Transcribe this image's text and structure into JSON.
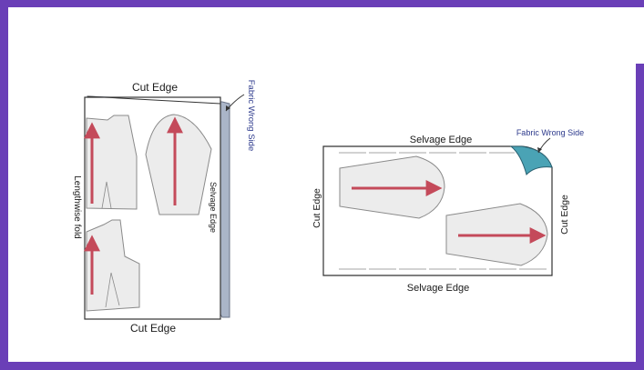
{
  "left_diagram": {
    "top_label": "Cut Edge",
    "bottom_label": "Cut Edge",
    "left_label": "Lengthwise fold",
    "right_label": "Selvage Edge",
    "fabric_side_label": "Fabric Wrong Side"
  },
  "right_diagram": {
    "top_label": "Selvage Edge",
    "bottom_label": "Selvage Edge",
    "left_label": "Cut Edge",
    "right_label": "Cut Edge",
    "fabric_side_label": "Fabric Wrong Side"
  },
  "colors": {
    "border": "#6a3fb7",
    "arrow": "#c44a5a",
    "fabric_wrong_side": "#4aa3b5",
    "fabric_side_stripe": "#aab5c8",
    "pattern_fill": "#ececec",
    "label_blue": "#2d3a8c"
  }
}
